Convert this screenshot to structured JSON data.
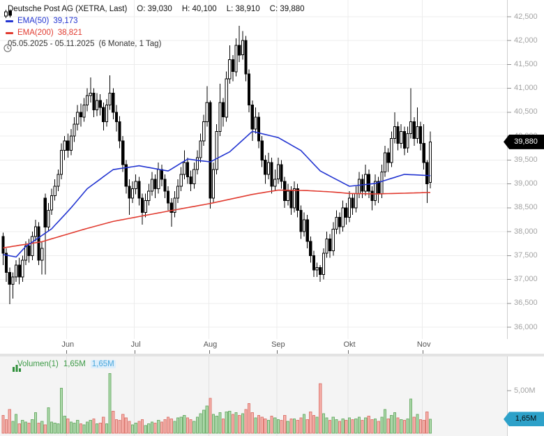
{
  "header": {
    "instrument": "Deutsche Post AG (XETRA, Last)",
    "ohlc": {
      "open": "O: 39,030",
      "high": "H: 40,100",
      "low": "L: 38,910",
      "close": "C: 39,880"
    },
    "ema50_label": "EMA(50)",
    "ema50_value": "39,173",
    "ema200_label": "EMA(200)",
    "ema200_value": "38,821",
    "date_range": "05.05.2025 - 05.11.2025",
    "period_info": "(6 Monate, 1 Tag)"
  },
  "price_axis": {
    "ticks": [
      {
        "v": 42500,
        "label": "42,500"
      },
      {
        "v": 42000,
        "label": "42,000"
      },
      {
        "v": 41500,
        "label": "41,500"
      },
      {
        "v": 41000,
        "label": "41,000"
      },
      {
        "v": 40500,
        "label": "40,500"
      },
      {
        "v": 40000,
        "label": "40,000"
      },
      {
        "v": 39500,
        "label": "39,500"
      },
      {
        "v": 39000,
        "label": "39,000"
      },
      {
        "v": 38500,
        "label": "38,500"
      },
      {
        "v": 38000,
        "label": "38,000"
      },
      {
        "v": 37500,
        "label": "37,500"
      },
      {
        "v": 37000,
        "label": "37,000"
      },
      {
        "v": 36500,
        "label": "36,500"
      },
      {
        "v": 36000,
        "label": "36,000"
      }
    ],
    "last_price_badge": {
      "v": 39880,
      "label": "39,880"
    }
  },
  "x_axis": {
    "months": [
      {
        "label": "Jun",
        "i": 20
      },
      {
        "label": "Jul",
        "i": 41
      },
      {
        "label": "Aug",
        "i": 64
      },
      {
        "label": "Sep",
        "i": 85
      },
      {
        "label": "Okt",
        "i": 107
      },
      {
        "label": "Nov",
        "i": 130
      }
    ]
  },
  "volume_panel": {
    "legend_label": "Volumen(1)",
    "value_green": "1,65M",
    "value_blue": "1,65M",
    "axis_label": "5,00M",
    "axis_tick_value": 5.0,
    "badge": {
      "v": 1.65,
      "label": "1,65M"
    }
  },
  "colors": {
    "ema50": "#2234d1",
    "ema200": "#e13b30",
    "candle_stroke": "#000000",
    "up_fill": "#ffffff",
    "down_fill": "#000000",
    "vol_up_fill": "#aed9ab",
    "vol_up_stroke": "#6fae6c",
    "vol_down_fill": "#f6b1ab",
    "vol_down_stroke": "#dc7a72",
    "grid": "#ececec",
    "grid_vol": "#e2e2e2",
    "axis_line": "#cfcfcf",
    "tick_mark": "#8f8f8f",
    "price_badge_bg": "#000000",
    "price_badge_text": "#ffffff",
    "vol_badge_bg": "#2da1c9",
    "vol_badge_text": "#0a0a0a",
    "legend_green": "#3d9a46",
    "legend_blue": "#4ba8dc",
    "vol_panel_bg": "#f4f4f4"
  },
  "chart_data": {
    "type": "candlestick",
    "title": "Deutsche Post AG (XETRA, Last)",
    "timeframe": "6 Monate, 1 Tag",
    "x_range": [
      "05.05.2025",
      "05.11.2025"
    ],
    "y_axis": {
      "min": 36000,
      "max": 42500,
      "step": 500
    },
    "volume_y_axis": {
      "tick": 5.0,
      "unit": "M"
    },
    "last_ohlc": {
      "open": 39030,
      "high": 40100,
      "low": 38910,
      "close": 39880
    },
    "ema50_last": 39173,
    "ema200_last": 38821,
    "candles_ohlc": [
      [
        37900,
        37980,
        37300,
        37550
      ],
      [
        37550,
        37650,
        36950,
        37150
      ],
      [
        37150,
        37250,
        36480,
        36900
      ],
      [
        36900,
        37150,
        36600,
        37050
      ],
      [
        37050,
        37400,
        36950,
        37300
      ],
      [
        37300,
        37450,
        36900,
        37050
      ],
      [
        37050,
        37500,
        36950,
        37400
      ],
      [
        37400,
        37800,
        37300,
        37700
      ],
      [
        37700,
        37850,
        37350,
        37500
      ],
      [
        37500,
        38000,
        37400,
        37900
      ],
      [
        37900,
        38250,
        37800,
        38100
      ],
      [
        38100,
        38200,
        37300,
        37400
      ],
      [
        37400,
        37800,
        37100,
        37650
      ],
      [
        38700,
        38800,
        37100,
        38100
      ],
      [
        38100,
        38600,
        38000,
        38450
      ],
      [
        38450,
        38900,
        38350,
        38750
      ],
      [
        38750,
        39100,
        38650,
        38950
      ],
      [
        38950,
        39300,
        38850,
        39200
      ],
      [
        39200,
        39850,
        39100,
        39700
      ],
      [
        39700,
        40000,
        39500,
        39900
      ],
      [
        39900,
        40050,
        39550,
        39700
      ],
      [
        39700,
        40150,
        39600,
        40000
      ],
      [
        40000,
        40400,
        39880,
        40250
      ],
      [
        40250,
        40650,
        40120,
        40500
      ],
      [
        40500,
        40680,
        40200,
        40400
      ],
      [
        40400,
        40800,
        40300,
        40650
      ],
      [
        40650,
        41000,
        40520,
        40850
      ],
      [
        40850,
        41230,
        40700,
        40900
      ],
      [
        40900,
        41000,
        40400,
        40550
      ],
      [
        40550,
        40900,
        40420,
        40750
      ],
      [
        40750,
        40880,
        40430,
        40600
      ],
      [
        40600,
        40700,
        40120,
        40300
      ],
      [
        40300,
        40780,
        40200,
        40650
      ],
      [
        40650,
        41270,
        40550,
        40900
      ],
      [
        40900,
        41000,
        40350,
        40500
      ],
      [
        40500,
        40650,
        40100,
        40300
      ],
      [
        40300,
        40420,
        39750,
        39900
      ],
      [
        39900,
        40000,
        39250,
        39400
      ],
      [
        39400,
        39500,
        38800,
        38950
      ],
      [
        38950,
        39100,
        38350,
        38700
      ],
      [
        38700,
        39050,
        38600,
        38900
      ],
      [
        38900,
        39200,
        38780,
        39050
      ],
      [
        39050,
        39150,
        38550,
        38700
      ],
      [
        38700,
        38800,
        38150,
        38400
      ],
      [
        38400,
        38800,
        38300,
        38650
      ],
      [
        38650,
        39000,
        38550,
        38850
      ],
      [
        38850,
        39250,
        38750,
        39100
      ],
      [
        39100,
        39200,
        38700,
        38900
      ],
      [
        38900,
        39450,
        38800,
        39300
      ],
      [
        39300,
        39400,
        38950,
        39100
      ],
      [
        39100,
        39200,
        38700,
        38850
      ],
      [
        38850,
        38950,
        38450,
        38600
      ],
      [
        38600,
        38700,
        38100,
        38400
      ],
      [
        38400,
        38850,
        38300,
        38700
      ],
      [
        38700,
        39100,
        38600,
        38950
      ],
      [
        38950,
        39350,
        38850,
        39200
      ],
      [
        39200,
        39700,
        39100,
        39450
      ],
      [
        39450,
        39550,
        39000,
        39150
      ],
      [
        39150,
        39280,
        38850,
        39000
      ],
      [
        39000,
        39450,
        38900,
        39300
      ],
      [
        39300,
        39700,
        39200,
        39550
      ],
      [
        39550,
        40050,
        39450,
        39900
      ],
      [
        39900,
        40450,
        39800,
        40300
      ],
      [
        40300,
        41050,
        40200,
        40700
      ],
      [
        40700,
        40750,
        38480,
        38700
      ],
      [
        38700,
        39450,
        38600,
        39300
      ],
      [
        39300,
        40250,
        39200,
        40100
      ],
      [
        40100,
        41100,
        40000,
        40700
      ],
      [
        40700,
        40800,
        40200,
        40400
      ],
      [
        40400,
        41350,
        40300,
        41200
      ],
      [
        41200,
        41900,
        41100,
        41600
      ],
      [
        41600,
        41700,
        41150,
        41350
      ],
      [
        41350,
        42050,
        41250,
        41900
      ],
      [
        41900,
        42310,
        41550,
        41700
      ],
      [
        41700,
        42200,
        41600,
        42000
      ],
      [
        42000,
        42100,
        41150,
        41300
      ],
      [
        41300,
        41400,
        40500,
        40650
      ],
      [
        40650,
        40750,
        39900,
        40150
      ],
      [
        40150,
        40600,
        40050,
        40400
      ],
      [
        40400,
        40500,
        39750,
        39900
      ],
      [
        39900,
        40000,
        39350,
        39500
      ],
      [
        39500,
        39600,
        39000,
        39200
      ],
      [
        39200,
        39650,
        39100,
        39450
      ],
      [
        39450,
        39550,
        38800,
        38950
      ],
      [
        38950,
        39300,
        38850,
        39100
      ],
      [
        39100,
        39550,
        39000,
        39400
      ],
      [
        39400,
        39500,
        38900,
        39050
      ],
      [
        39050,
        39150,
        38500,
        38650
      ],
      [
        38650,
        39000,
        38550,
        38850
      ],
      [
        38850,
        38950,
        38350,
        38500
      ],
      [
        38500,
        39050,
        38400,
        38900
      ],
      [
        38900,
        39000,
        38300,
        38450
      ],
      [
        38450,
        38550,
        37850,
        38000
      ],
      [
        38000,
        38400,
        37900,
        38250
      ],
      [
        38250,
        38350,
        37650,
        37800
      ],
      [
        37800,
        37900,
        37350,
        37500
      ],
      [
        37500,
        37600,
        37050,
        37200
      ],
      [
        37200,
        37350,
        37050,
        37250
      ],
      [
        37250,
        37300,
        36950,
        37100
      ],
      [
        37100,
        37650,
        37000,
        37550
      ],
      [
        37550,
        38000,
        37450,
        37850
      ],
      [
        37850,
        37950,
        37450,
        37600
      ],
      [
        37600,
        38200,
        37500,
        38050
      ],
      [
        38050,
        38450,
        37950,
        38300
      ],
      [
        38300,
        38400,
        37950,
        38100
      ],
      [
        38100,
        38650,
        38000,
        38500
      ],
      [
        38500,
        38600,
        38150,
        38300
      ],
      [
        38300,
        38850,
        38200,
        38700
      ],
      [
        38700,
        38800,
        38350,
        38500
      ],
      [
        38500,
        38950,
        38400,
        38800
      ],
      [
        38800,
        39250,
        38700,
        39100
      ],
      [
        39100,
        39200,
        38700,
        38850
      ],
      [
        38850,
        39400,
        38750,
        39200
      ],
      [
        39200,
        39300,
        38700,
        38850
      ],
      [
        38850,
        38950,
        38450,
        38650
      ],
      [
        38650,
        39200,
        38550,
        39050
      ],
      [
        39050,
        39150,
        38600,
        38800
      ],
      [
        38800,
        39400,
        38700,
        39250
      ],
      [
        39250,
        39800,
        39150,
        39650
      ],
      [
        39650,
        39750,
        39250,
        39450
      ],
      [
        39450,
        40100,
        39350,
        39950
      ],
      [
        39950,
        40500,
        39850,
        40200
      ],
      [
        40200,
        40300,
        39700,
        39850
      ],
      [
        39850,
        40250,
        39750,
        40100
      ],
      [
        40100,
        40200,
        39600,
        39750
      ],
      [
        39750,
        40200,
        39650,
        40050
      ],
      [
        40050,
        41000,
        39950,
        40300
      ],
      [
        40300,
        40400,
        39800,
        39950
      ],
      [
        39950,
        40600,
        39850,
        40200
      ],
      [
        40200,
        40300,
        39700,
        39850
      ],
      [
        39850,
        40250,
        39300,
        39450
      ],
      [
        39450,
        39500,
        38600,
        39000
      ],
      [
        39030,
        40100,
        38910,
        39880
      ]
    ],
    "volumes_millions": [
      2.1,
      1.6,
      2.8,
      1.4,
      2.2,
      1.1,
      1.5,
      1.3,
      1.2,
      1.6,
      2.4,
      1.2,
      1.4,
      1.0,
      3.0,
      1.3,
      1.2,
      1.1,
      5.3,
      2.0,
      1.7,
      1.3,
      1.2,
      1.5,
      1.1,
      1.0,
      1.3,
      1.5,
      1.7,
      1.1,
      1.2,
      1.9,
      1.1,
      7.0,
      2.6,
      1.6,
      1.5,
      2.2,
      1.8,
      1.4,
      1.0,
      1.2,
      1.4,
      1.6,
      0.9,
      1.1,
      1.3,
      1.2,
      1.5,
      1.3,
      1.6,
      1.9,
      1.7,
      1.4,
      1.8,
      1.9,
      2.1,
      1.8,
      1.6,
      1.4,
      1.9,
      2.3,
      2.7,
      3.2,
      4.1,
      2.2,
      2.0,
      2.4,
      1.7,
      2.5,
      2.6,
      2.2,
      2.4,
      2.1,
      2.3,
      2.8,
      3.5,
      2.4,
      1.8,
      2.1,
      1.9,
      1.7,
      1.5,
      2.0,
      1.8,
      1.6,
      1.5,
      2.1,
      1.4,
      1.7,
      1.7,
      1.5,
      1.8,
      2.2,
      1.6,
      2.5,
      2.1,
      1.9,
      5.8,
      2.3,
      1.8,
      1.5,
      1.9,
      1.6,
      1.4,
      1.7,
      1.5,
      1.8,
      1.6,
      1.7,
      1.9,
      1.5,
      1.8,
      2.0,
      1.6,
      1.7,
      1.4,
      1.9,
      2.8,
      1.7,
      2.1,
      2.4,
      1.8,
      1.6,
      1.5,
      1.7,
      4.0,
      1.9,
      2.2,
      1.6,
      1.5,
      2.5,
      1.65
    ],
    "ema50_anchors": [
      [
        0,
        37520
      ],
      [
        4,
        37470
      ],
      [
        7,
        37690
      ],
      [
        15,
        38060
      ],
      [
        21,
        38500
      ],
      [
        26,
        38900
      ],
      [
        34,
        39300
      ],
      [
        42,
        39380
      ],
      [
        51,
        39270
      ],
      [
        57,
        39520
      ],
      [
        64,
        39460
      ],
      [
        70,
        39670
      ],
      [
        77,
        40100
      ],
      [
        85,
        39970
      ],
      [
        92,
        39700
      ],
      [
        98,
        39270
      ],
      [
        107,
        38950
      ],
      [
        115,
        39010
      ],
      [
        124,
        39200
      ],
      [
        132,
        39173
      ]
    ],
    "ema200_anchors": [
      [
        0,
        37660
      ],
      [
        12,
        37790
      ],
      [
        25,
        38050
      ],
      [
        34,
        38215
      ],
      [
        51,
        38430
      ],
      [
        64,
        38590
      ],
      [
        77,
        38780
      ],
      [
        85,
        38870
      ],
      [
        94,
        38860
      ],
      [
        102,
        38830
      ],
      [
        107,
        38800
      ],
      [
        115,
        38790
      ],
      [
        124,
        38805
      ],
      [
        132,
        38821
      ]
    ]
  }
}
